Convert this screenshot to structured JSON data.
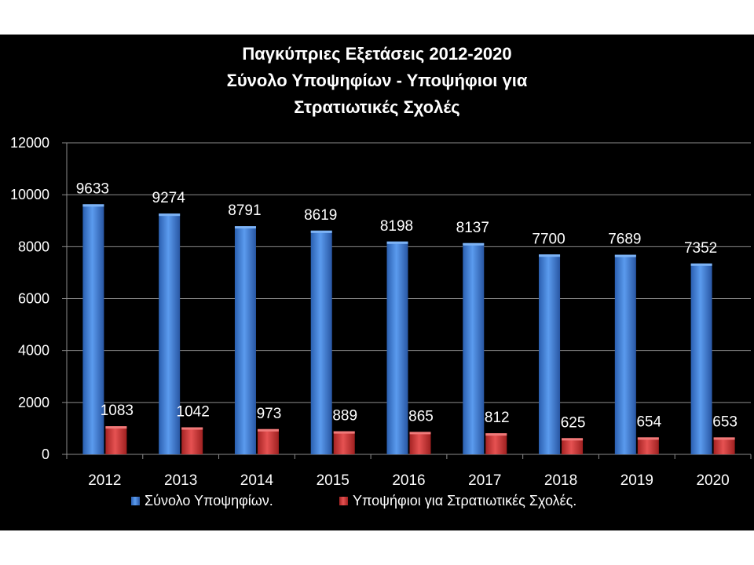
{
  "chart_data": {
    "type": "bar",
    "title": [
      "Παγκύπριες Εξετάσεις 2012-2020",
      "Σύνολο Υποψηφίων - Υποψήφιοι για",
      "Στρατιωτικές Σχολές"
    ],
    "categories": [
      "2012",
      "2013",
      "2014",
      "2015",
      "2016",
      "2017",
      "2018",
      "2019",
      "2020"
    ],
    "series": [
      {
        "name": "Σύνολο Υποψηφίων.",
        "color": "#3C7FD9",
        "values": [
          9633,
          9274,
          8791,
          8619,
          8198,
          8137,
          7700,
          7689,
          7352
        ]
      },
      {
        "name": "Υποψήφιοι για Στρατιωτικές Σχολές.",
        "color": "#D63838",
        "values": [
          1083,
          1042,
          973,
          889,
          865,
          812,
          625,
          654,
          653
        ]
      }
    ],
    "ylim": [
      0,
      12000
    ],
    "yticks": [
      "0",
      "2000",
      "4000",
      "6000",
      "8000",
      "10000",
      "12000"
    ],
    "grid": true,
    "legend_position": "bottom",
    "data_labels": true
  }
}
